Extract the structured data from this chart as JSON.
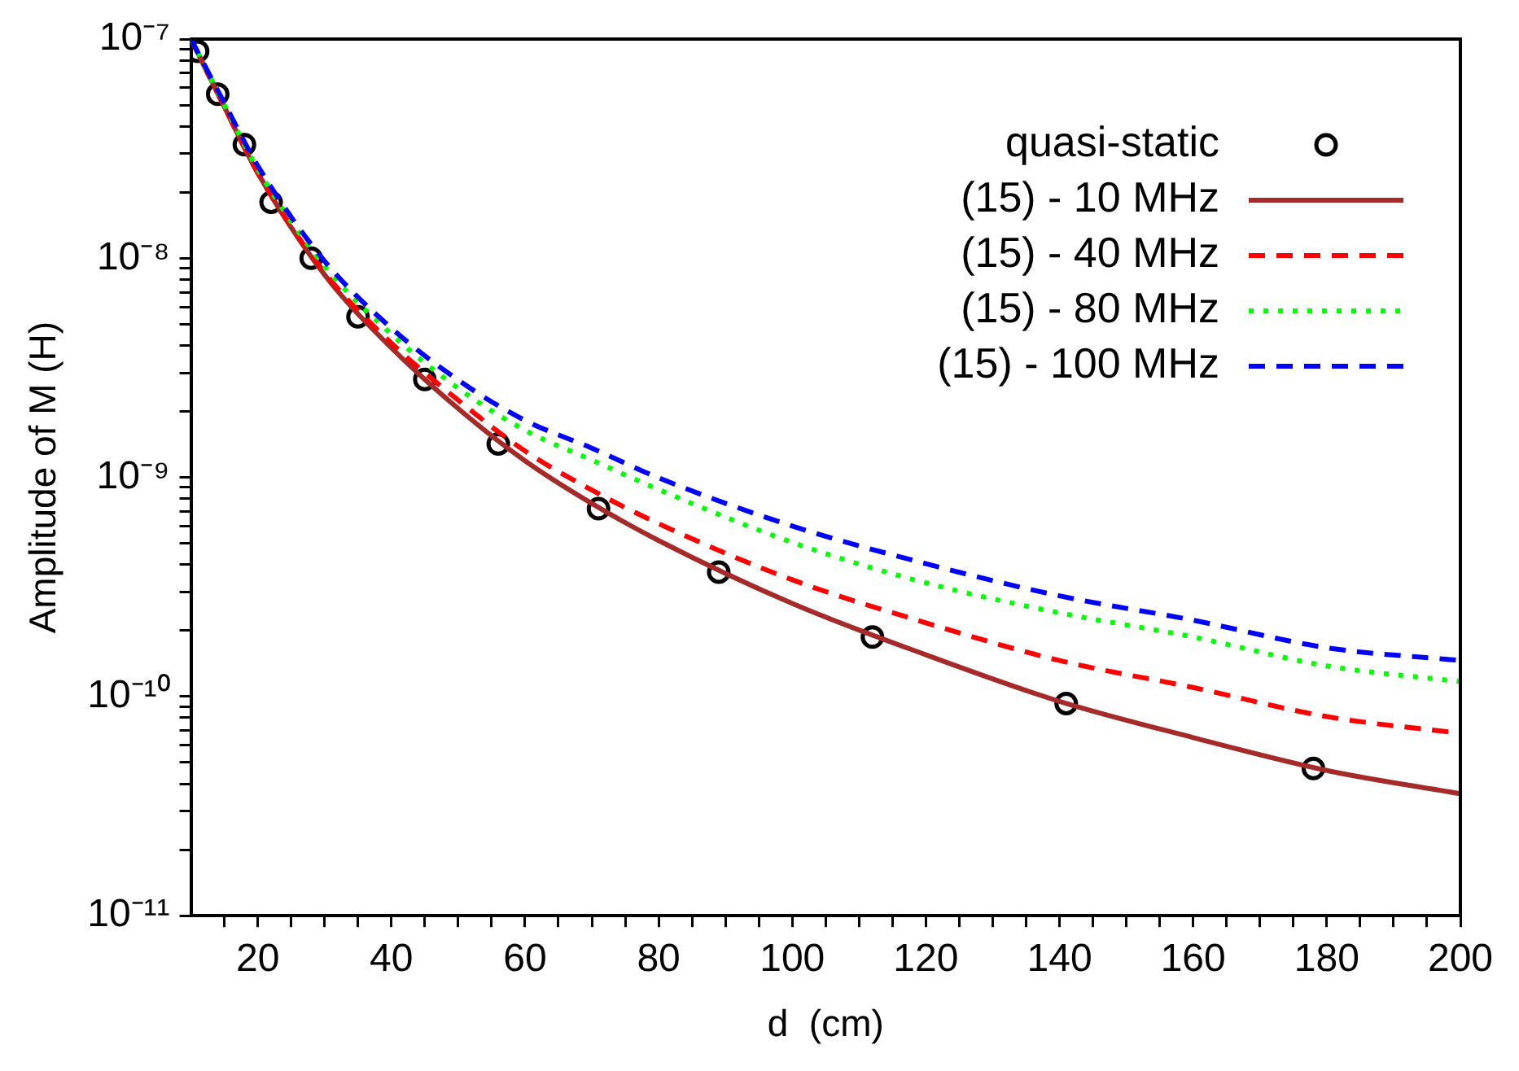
{
  "chart_data": {
    "type": "line",
    "xlabel": "d  (cm)",
    "ylabel": "Amplitude of M (H)",
    "log": "y",
    "xlim": [
      10,
      200
    ],
    "ylim": [
      1e-11,
      1e-07
    ],
    "xticks": [
      {
        "value": 15,
        "label": null
      },
      20,
      {
        "value": 25,
        "label": null
      },
      {
        "value": 30,
        "label": null
      },
      {
        "value": 35,
        "label": null
      },
      40,
      {
        "value": 45,
        "label": null
      },
      {
        "value": 50,
        "label": null
      },
      {
        "value": 55,
        "label": null
      },
      60,
      {
        "value": 65,
        "label": null
      },
      {
        "value": 70,
        "label": null
      },
      {
        "value": 75,
        "label": null
      },
      80,
      {
        "value": 85,
        "label": null
      },
      {
        "value": 90,
        "label": null
      },
      {
        "value": 95,
        "label": null
      },
      100,
      {
        "value": 105,
        "label": null
      },
      {
        "value": 110,
        "label": null
      },
      {
        "value": 115,
        "label": null
      },
      120,
      {
        "value": 125,
        "label": null
      },
      {
        "value": 130,
        "label": null
      },
      {
        "value": 135,
        "label": null
      },
      140,
      {
        "value": 145,
        "label": null
      },
      {
        "value": 150,
        "label": null
      },
      {
        "value": 155,
        "label": null
      },
      160,
      {
        "value": 165,
        "label": null
      },
      {
        "value": 170,
        "label": null
      },
      {
        "value": 175,
        "label": null
      },
      180,
      {
        "value": 185,
        "label": null
      },
      {
        "value": 190,
        "label": null
      },
      {
        "value": 195,
        "label": null
      },
      200
    ],
    "yticks": [
      {
        "value": 1e-11,
        "label": "10⁻¹¹"
      },
      {
        "value": 2e-11,
        "label": null
      },
      {
        "value": 3e-11,
        "label": null
      },
      {
        "value": 4e-11,
        "label": null
      },
      {
        "value": 5e-11,
        "label": null
      },
      {
        "value": 6e-11,
        "label": null
      },
      {
        "value": 7e-11,
        "label": null
      },
      {
        "value": 8e-11,
        "label": null
      },
      {
        "value": 9e-11,
        "label": null
      },
      {
        "value": 1e-10,
        "label": "10⁻¹⁰"
      },
      {
        "value": 2e-10,
        "label": null
      },
      {
        "value": 3e-10,
        "label": null
      },
      {
        "value": 4e-10,
        "label": null
      },
      {
        "value": 5e-10,
        "label": null
      },
      {
        "value": 6e-10,
        "label": null
      },
      {
        "value": 7e-10,
        "label": null
      },
      {
        "value": 8e-10,
        "label": null
      },
      {
        "value": 9e-10,
        "label": null
      },
      {
        "value": 1e-09,
        "label": "10⁻⁹"
      },
      {
        "value": 2e-09,
        "label": null
      },
      {
        "value": 3e-09,
        "label": null
      },
      {
        "value": 4e-09,
        "label": null
      },
      {
        "value": 5e-09,
        "label": null
      },
      {
        "value": 6e-09,
        "label": null
      },
      {
        "value": 7e-09,
        "label": null
      },
      {
        "value": 8e-09,
        "label": null
      },
      {
        "value": 9e-09,
        "label": null
      },
      {
        "value": 1e-08,
        "label": "10⁻⁸"
      },
      {
        "value": 2e-08,
        "label": null
      },
      {
        "value": 3e-08,
        "label": null
      },
      {
        "value": 4e-08,
        "label": null
      },
      {
        "value": 5e-08,
        "label": null
      },
      {
        "value": 6e-08,
        "label": null
      },
      {
        "value": 7e-08,
        "label": null
      },
      {
        "value": 8e-08,
        "label": null
      },
      {
        "value": 9e-08,
        "label": null
      },
      {
        "value": 1e-07,
        "label": "10⁻⁷"
      }
    ],
    "grid": false,
    "legend": "top right",
    "marker": "none",
    "x": [
      10,
      15,
      20,
      30,
      40,
      50,
      60,
      70,
      80,
      100,
      120,
      140,
      160,
      180,
      200
    ],
    "series": [
      {
        "name": "quasi-static",
        "type": "scatter",
        "marker": "circle",
        "color": "#000000",
        "x": [
          11,
          14,
          18,
          22,
          28,
          35,
          45,
          56,
          71,
          89,
          112,
          141,
          178
        ],
        "values": [
          8.8e-08,
          5.6e-08,
          3.3e-08,
          1.8e-08,
          1e-08,
          5.4e-09,
          2.8e-09,
          1.42e-09,
          7.2e-10,
          3.7e-10,
          1.87e-10,
          9.3e-11,
          4.7e-11
        ]
      },
      {
        "name": "(15) - 10 MHz",
        "color": "#a52a2a",
        "line_style": "solid",
        "values": [
          1e-07,
          4.9e-08,
          2.45e-08,
          8.4e-09,
          3.9e-09,
          2.06e-09,
          1.19e-09,
          7.6e-10,
          5.15e-10,
          2.66e-10,
          1.55e-10,
          9.5e-11,
          6.5e-11,
          4.6e-11,
          3.6e-11
        ]
      },
      {
        "name": "(15) - 40 MHz",
        "color": "#ff0000",
        "line_style": "dashed",
        "values": [
          1e-07,
          4.9e-08,
          2.45e-08,
          8.6e-09,
          4.1e-09,
          2.25e-09,
          1.32e-09,
          8.75e-10,
          6.15e-10,
          3.41e-10,
          2.17e-10,
          1.46e-10,
          1.1e-10,
          8.1e-11,
          6.8e-11
        ]
      },
      {
        "name": "(15) - 80 MHz",
        "color": "#00ff00",
        "line_style": "dotted",
        "values": [
          1e-07,
          5e-08,
          2.54e-08,
          9.2e-09,
          4.5e-09,
          2.55e-09,
          1.64e-09,
          1.2e-09,
          8.8e-10,
          5.05e-10,
          3.3e-10,
          2.41e-10,
          1.87e-10,
          1.38e-10,
          1.17e-10
        ]
      },
      {
        "name": "(15) - 100 MHz",
        "color": "#0000ff",
        "line_style": "dashed",
        "values": [
          1e-07,
          5.1e-08,
          2.64e-08,
          9.7e-09,
          4.8e-09,
          2.78e-09,
          1.82e-09,
          1.36e-09,
          9.95e-10,
          6e-10,
          4.04e-10,
          2.88e-10,
          2.23e-10,
          1.67e-10,
          1.46e-10
        ]
      }
    ]
  }
}
